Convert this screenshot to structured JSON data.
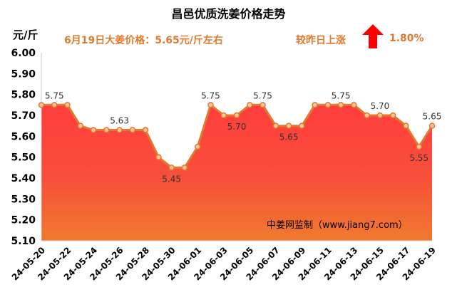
{
  "title": "昌邑优质洗姜价格走势",
  "unit_label": "元/斤",
  "price_note": "6月19日大姜价格：5.65元/斤左右",
  "change": {
    "label": "较昨日上涨",
    "value": "1.80%",
    "direction": "up",
    "arrow_color": "#ff0000"
  },
  "source_note": "中姜网监制（www.jiang7.com）",
  "colors": {
    "line": "#e07a2e",
    "fill_top": "#ff3d3d",
    "fill_bottom": "#f07a2e",
    "accent_text": "#e07a2e"
  },
  "chart_data": {
    "type": "area",
    "x": [
      "24-05-20",
      "24-05-21",
      "24-05-22",
      "24-05-23",
      "24-05-24",
      "24-05-25",
      "24-05-26",
      "24-05-27",
      "24-05-28",
      "24-05-29",
      "24-05-30",
      "24-05-31",
      "24-06-01",
      "24-06-02",
      "24-06-03",
      "24-06-04",
      "24-06-05",
      "24-06-06",
      "24-06-07",
      "24-06-08",
      "24-06-09",
      "24-06-10",
      "24-06-11",
      "24-06-12",
      "24-06-13",
      "24-06-14",
      "24-06-15",
      "24-06-16",
      "24-06-17",
      "24-06-18",
      "24-06-19"
    ],
    "y": [
      5.75,
      5.75,
      5.75,
      5.65,
      5.63,
      5.63,
      5.63,
      5.63,
      5.63,
      5.5,
      5.45,
      5.45,
      5.55,
      5.75,
      5.7,
      5.7,
      5.75,
      5.75,
      5.65,
      5.65,
      5.65,
      5.75,
      5.75,
      5.75,
      5.75,
      5.7,
      5.7,
      5.7,
      5.65,
      5.55,
      5.65
    ],
    "x_tick_labels": [
      "24-05-20",
      "24-05-22",
      "24-05-24",
      "24-05-26",
      "24-05-28",
      "24-05-30",
      "24-06-01",
      "24-06-03",
      "24-06-05",
      "24-06-07",
      "24-06-09",
      "24-06-11",
      "24-06-13",
      "24-06-15",
      "24-06-17",
      "24-06-19"
    ],
    "y_tick_labels": [
      "5.10",
      "5.20",
      "5.30",
      "5.40",
      "5.50",
      "5.60",
      "5.70",
      "5.80",
      "5.90",
      "6.00"
    ],
    "ylim": [
      5.1,
      6.0
    ],
    "data_labels": [
      {
        "index": 1,
        "text": "5.75"
      },
      {
        "index": 6,
        "text": "5.63"
      },
      {
        "index": 10,
        "text": "5.45"
      },
      {
        "index": 13,
        "text": "5.75"
      },
      {
        "index": 15,
        "text": "5.70"
      },
      {
        "index": 17,
        "text": "5.75"
      },
      {
        "index": 19,
        "text": "5.65"
      },
      {
        "index": 23,
        "text": "5.75"
      },
      {
        "index": 26,
        "text": "5.70"
      },
      {
        "index": 29,
        "text": "5.55"
      },
      {
        "index": 30,
        "text": "5.65"
      }
    ],
    "grid": false
  }
}
